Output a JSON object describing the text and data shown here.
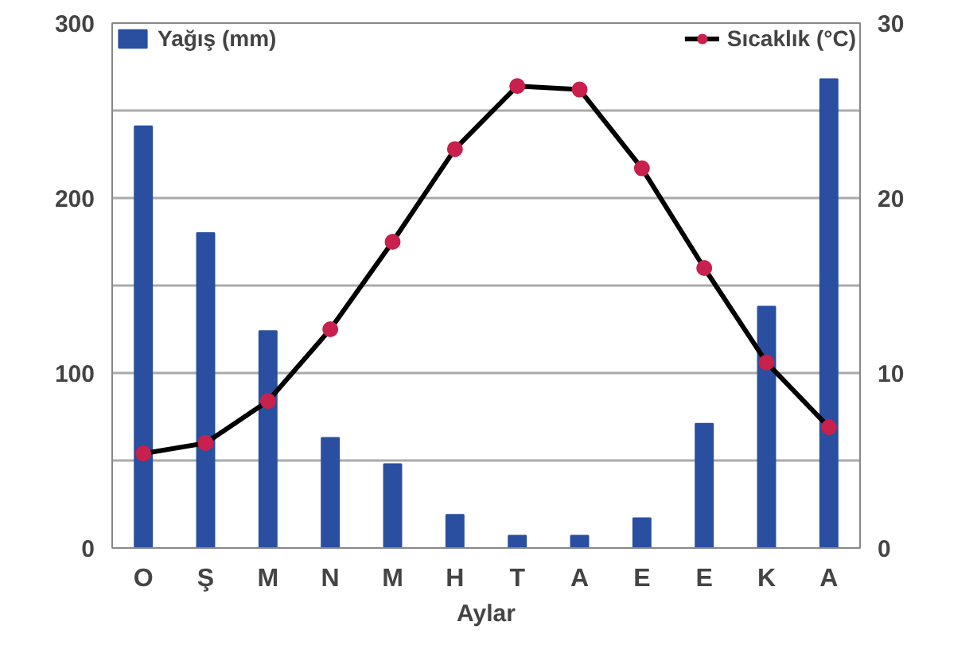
{
  "chart_data": {
    "type": "bar",
    "categories": [
      "O",
      "Ş",
      "M",
      "N",
      "M",
      "H",
      "T",
      "A",
      "E",
      "E",
      "K",
      "A"
    ],
    "xlabel": "Aylar",
    "series": [
      {
        "name": "Yağış (mm)",
        "type": "bar",
        "color": "#2a4fa0",
        "values": [
          241,
          180,
          124,
          63,
          48,
          19,
          7,
          7,
          17,
          71,
          138,
          268
        ]
      },
      {
        "name": "Sıcaklık (°C)",
        "type": "line",
        "axis": "y2",
        "color": "#000000",
        "marker": "circle",
        "values": [
          5.4,
          6.0,
          8.4,
          12.5,
          17.5,
          22.8,
          26.4,
          26.2,
          21.7,
          16.0,
          10.6,
          6.9
        ]
      }
    ],
    "ylim": [
      0,
      300
    ],
    "yticks": [
      0,
      {
        "value": 50,
        "label": null
      },
      100,
      {
        "value": 150,
        "label": null
      },
      200,
      {
        "value": 250,
        "label": null
      },
      300
    ],
    "y2lim": [
      0,
      30
    ],
    "y2ticks": [
      0,
      10,
      20,
      30
    ],
    "grid": "y",
    "legend": "top"
  }
}
